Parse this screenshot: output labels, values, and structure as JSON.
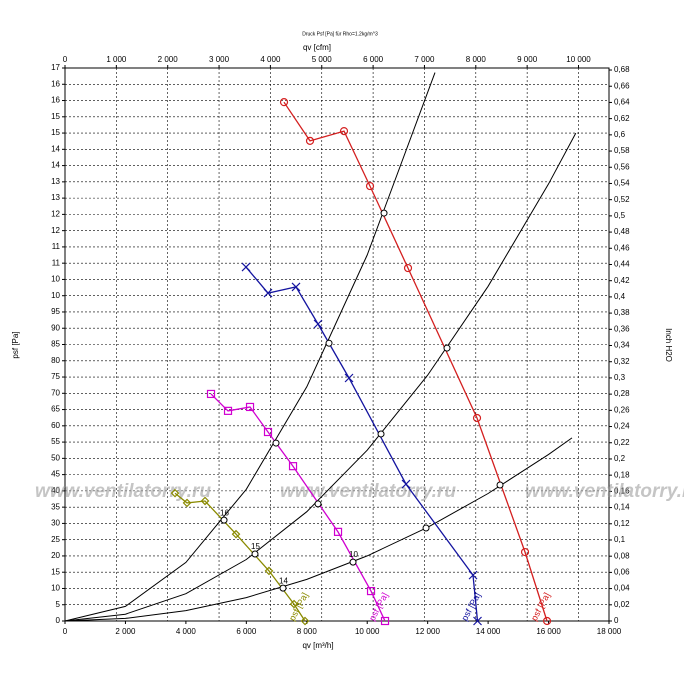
{
  "chart_data": {
    "type": "line",
    "title": "Druck Psf [Pa] für Rho=1.2kg/m^3",
    "x_label": "qv [m³/h]",
    "x2_label": "qv [cfm]",
    "y_label": "psf [Pa]",
    "y2_label": "Inch H2O",
    "watermark": "www.ventilatorry.ru",
    "grid": true,
    "xlim": [
      0,
      18000
    ],
    "xticks": [
      0,
      {
        "value": 2000,
        "label": "2 000"
      },
      {
        "value": 4000,
        "label": "4 000"
      },
      {
        "value": 6000,
        "label": "6 000"
      },
      {
        "value": 8000,
        "label": "8 000"
      },
      {
        "value": 10000,
        "label": "10 000"
      },
      {
        "value": 12000,
        "label": "12 000"
      },
      {
        "value": 14000,
        "label": "14 000"
      },
      {
        "value": 16000,
        "label": "16 000"
      },
      {
        "value": 18000,
        "label": "18 000"
      }
    ],
    "x2lim": [
      0,
      10594
    ],
    "x2ticks": [
      0,
      {
        "value": 1000,
        "label": "1 000"
      },
      {
        "value": 2000,
        "label": "2 000"
      },
      {
        "value": 3000,
        "label": "3 000"
      },
      {
        "value": 4000,
        "label": "4 000"
      },
      {
        "value": 5000,
        "label": "5 000"
      },
      {
        "value": 6000,
        "label": "6 000"
      },
      {
        "value": 7000,
        "label": "7 000"
      },
      {
        "value": 8000,
        "label": "8 000"
      },
      {
        "value": 9000,
        "label": "9 000"
      },
      {
        "value": 10000,
        "label": "10 000"
      }
    ],
    "ylim": [
      0,
      170
    ],
    "yticks": [
      0,
      5,
      10,
      15,
      20,
      25,
      30,
      35,
      40,
      45,
      50,
      55,
      60,
      65,
      70,
      75,
      80,
      85,
      90,
      95,
      {
        "value": 100,
        "label": "10"
      },
      {
        "value": 105,
        "label": "10"
      },
      {
        "value": 110,
        "label": "11"
      },
      {
        "value": 115,
        "label": "11"
      },
      {
        "value": 120,
        "label": "12"
      },
      {
        "value": 125,
        "label": "12"
      },
      {
        "value": 130,
        "label": "13"
      },
      {
        "value": 135,
        "label": "13"
      },
      {
        "value": 140,
        "label": "14"
      },
      {
        "value": 145,
        "label": "14"
      },
      {
        "value": 150,
        "label": "15"
      },
      {
        "value": 155,
        "label": "15"
      },
      {
        "value": 160,
        "label": "16"
      },
      {
        "value": 165,
        "label": "16"
      },
      {
        "value": 170,
        "label": "17"
      }
    ],
    "y2lim": [
      0,
      0.6825
    ],
    "y2ticks": [
      0,
      {
        "value": 0.02,
        "label": "0,02"
      },
      {
        "value": 0.04,
        "label": "0,04"
      },
      {
        "value": 0.06,
        "label": "0,06"
      },
      {
        "value": 0.08,
        "label": "0,08"
      },
      {
        "value": 0.1,
        "label": "0,1"
      },
      {
        "value": 0.12,
        "label": "0,12"
      },
      {
        "value": 0.14,
        "label": "0,14"
      },
      {
        "value": 0.16,
        "label": "0,16"
      },
      {
        "value": 0.18,
        "label": "0,18"
      },
      {
        "value": 0.2,
        "label": "0,2"
      },
      {
        "value": 0.22,
        "label": "0,22"
      },
      {
        "value": 0.24,
        "label": "0,24"
      },
      {
        "value": 0.26,
        "label": "0,26"
      },
      {
        "value": 0.28,
        "label": "0,28"
      },
      {
        "value": 0.3,
        "label": "0,3"
      },
      {
        "value": 0.32,
        "label": "0,32"
      },
      {
        "value": 0.34,
        "label": "0,34"
      },
      {
        "value": 0.36,
        "label": "0,36"
      },
      {
        "value": 0.38,
        "label": "0,38"
      },
      {
        "value": 0.4,
        "label": "0,4"
      },
      {
        "value": 0.42,
        "label": "0,42"
      },
      {
        "value": 0.44,
        "label": "0,44"
      },
      {
        "value": 0.46,
        "label": "0,46"
      },
      {
        "value": 0.48,
        "label": "0,48"
      },
      {
        "value": 0.5,
        "label": "0,5"
      },
      {
        "value": 0.52,
        "label": "0,52"
      },
      {
        "value": 0.54,
        "label": "0,54"
      },
      {
        "value": 0.56,
        "label": "0,56"
      },
      {
        "value": 0.58,
        "label": "0,58"
      },
      {
        "value": 0.6,
        "label": "0,6"
      },
      {
        "value": 0.62,
        "label": "0,62"
      },
      {
        "value": 0.64,
        "label": "0,64"
      },
      {
        "value": 0.66,
        "label": "0,66"
      },
      {
        "value": 0.68,
        "label": "0,68"
      }
    ],
    "series": [
      {
        "name": "psf [Pa]",
        "color": "#d42020",
        "marker": "circle",
        "x": [
          7247,
          8107,
          9232,
          10093,
          11350,
          13633,
          15222,
          15950
        ],
        "values": [
          159.5,
          147.6,
          150.6,
          133.7,
          108.5,
          62.4,
          21.2,
          0
        ]
      },
      {
        "name": "psf [Pa]",
        "color": "#1515a0",
        "marker": "cross",
        "x": [
          5989,
          6717,
          7644,
          8372,
          9398,
          11284,
          13501,
          13650
        ],
        "values": [
          108.8,
          100.8,
          102.7,
          91.3,
          74.7,
          42.1,
          14.1,
          0
        ]
      },
      {
        "name": "psf [Pa]",
        "color": "#d000d0",
        "marker": "square",
        "x": [
          4831,
          5394,
          6122,
          6717,
          7545,
          9034,
          10126,
          10589
        ],
        "values": [
          69.8,
          64.6,
          65.8,
          58.1,
          47.6,
          27.4,
          9.2,
          0
        ]
      },
      {
        "name": "psf [Pa]",
        "color": "#8a8a00",
        "marker": "diamond",
        "x": [
          3640,
          4037,
          4633,
          5659,
          6750,
          7578,
          7942
        ],
        "values": [
          39.3,
          36.3,
          36.9,
          26.7,
          15.4,
          5.2,
          0
        ]
      }
    ],
    "system_curves": [
      {
        "color": "#000000",
        "x": [
          0,
          2000,
          4000,
          6000,
          8000,
          10000,
          12244
        ],
        "values": [
          0,
          4.5,
          18,
          40.5,
          72,
          112.5,
          168.6
        ]
      },
      {
        "color": "#000000",
        "x": [
          0,
          2000,
          4000,
          6000,
          8000,
          10000,
          12000,
          14000,
          16000,
          16900
        ],
        "values": [
          0,
          2.1,
          8.4,
          18.9,
          33.6,
          52.5,
          75.6,
          102.9,
          134.4,
          150
        ]
      },
      {
        "color": "#000000",
        "x": [
          0,
          2000,
          4000,
          6000,
          8000,
          10000,
          12000,
          14000,
          16000,
          16777
        ],
        "values": [
          0,
          0.8,
          3.2,
          7.2,
          12.8,
          20,
          28.8,
          39.2,
          51.2,
          56.3
        ]
      }
    ],
    "operating_points": {
      "x": [
        10556,
        12640,
        14394,
        8736,
        10457,
        11946,
        6982,
        8372,
        9530,
        5262,
        6287,
        7214
      ],
      "values": [
        125.4,
        83.9,
        41.8,
        85.4,
        57.5,
        28.6,
        54.7,
        36,
        18.1,
        31,
        20.6,
        10.1
      ],
      "labels": [
        null,
        null,
        null,
        null,
        null,
        null,
        null,
        null,
        "10",
        "16",
        "15",
        "14"
      ]
    }
  }
}
